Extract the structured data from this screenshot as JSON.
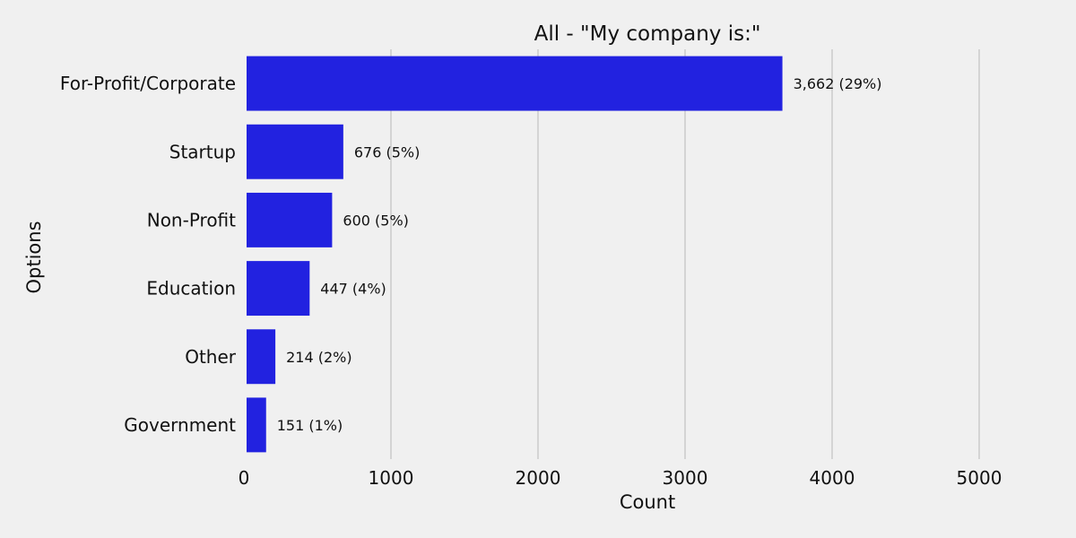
{
  "chart_data": {
    "type": "bar",
    "orientation": "horizontal",
    "title": "All - \"My company is:\"",
    "xlabel": "Count",
    "ylabel": "Options",
    "categories": [
      "For-Profit/Corporate",
      "Startup",
      "Non-Profit",
      "Education",
      "Other",
      "Government"
    ],
    "values": [
      3662,
      676,
      600,
      447,
      214,
      151
    ],
    "value_labels": [
      "3,662 (29%)",
      "676 (5%)",
      "600 (5%)",
      "447 (4%)",
      "214 (2%)",
      "151 (1%)"
    ],
    "xlim": [
      0,
      5500
    ],
    "xticks": [
      0,
      1000,
      2000,
      3000,
      4000,
      5000
    ],
    "grid": "vertical",
    "bar_color": "#2222e0"
  }
}
